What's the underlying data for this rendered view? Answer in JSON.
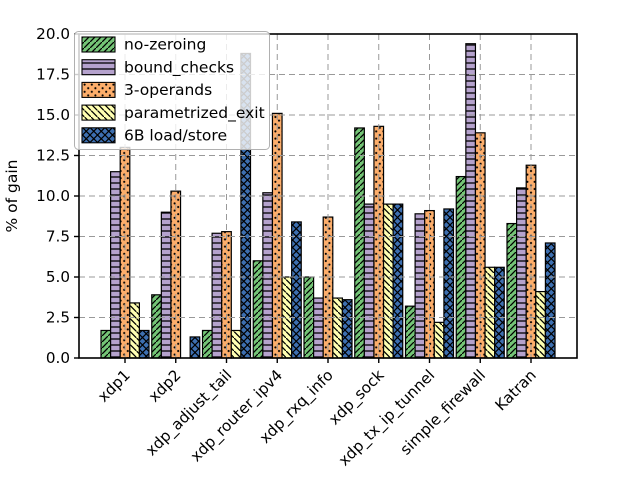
{
  "figure": {
    "background": "#ffffff"
  },
  "chart_data": {
    "type": "bar",
    "title": "",
    "xlabel": "",
    "ylabel": "% of gain",
    "ylim": [
      0,
      20
    ],
    "ytick_step": 2.5,
    "ytick_labels": [
      "0.0",
      "2.5",
      "5.0",
      "7.5",
      "10.0",
      "12.5",
      "15.0",
      "17.5",
      "20.0"
    ],
    "grid": "dashed-both-axes-above-bars",
    "grid_color": "#999999",
    "legend_position": "upper-left",
    "bar_edge_color": "#000000",
    "categories": [
      "xdp1",
      "xdp2",
      "xdp_adjust_tail",
      "xdp_router_ipv4",
      "xdp_rxq_info",
      "xdp_sock",
      "xdp_tx_ip_tunnel",
      "simple_firewall",
      "Katran"
    ],
    "series": [
      {
        "name": "no-zeroing",
        "color": "#74c476",
        "hatch": "diagonal-forward",
        "values": [
          1.7,
          3.9,
          1.7,
          6.0,
          5.0,
          14.2,
          3.2,
          11.2,
          8.3
        ]
      },
      {
        "name": "bound_checks",
        "color": "#b5a2cd",
        "hatch": "horizontal-lines",
        "values": [
          11.5,
          9.0,
          7.7,
          10.2,
          3.7,
          9.5,
          8.9,
          19.4,
          10.5
        ]
      },
      {
        "name": "3-operands",
        "color": "#fdae6b",
        "hatch": "dots",
        "values": [
          13.0,
          10.3,
          7.8,
          15.1,
          8.7,
          14.3,
          9.1,
          13.9,
          11.9
        ]
      },
      {
        "name": "parametrized_exit",
        "color": "#ffffb2",
        "hatch": "diagonal-back",
        "values": [
          3.4,
          0.0,
          1.7,
          5.0,
          3.7,
          9.5,
          2.2,
          5.6,
          4.1
        ]
      },
      {
        "name": "6B load/store",
        "color": "#3d6fb0",
        "hatch": "crosshatch",
        "values": [
          1.7,
          1.3,
          18.8,
          8.4,
          3.6,
          9.5,
          9.2,
          5.6,
          7.1
        ]
      }
    ]
  }
}
